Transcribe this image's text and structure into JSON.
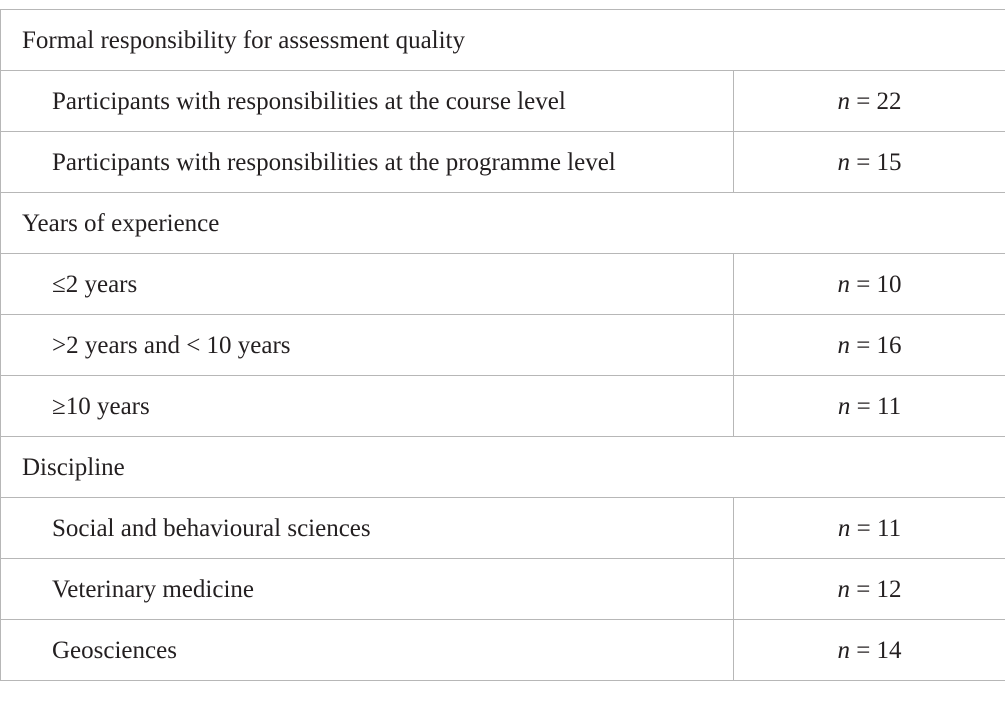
{
  "sections": [
    {
      "title": "Formal responsibility for assessment quality",
      "rows": [
        {
          "label": "Participants with responsibilities at the course level",
          "n_symbol": "n",
          "value": "= 22"
        },
        {
          "label": "Participants with responsibilities at the programme level",
          "n_symbol": "n",
          "value": "= 15"
        }
      ]
    },
    {
      "title": "Years of experience",
      "rows": [
        {
          "label": "≤2 years",
          "n_symbol": "n",
          "value": "= 10"
        },
        {
          "label": ">2 years and < 10 years",
          "n_symbol": "n",
          "value": "= 16"
        },
        {
          "label": "≥10 years",
          "n_symbol": "n",
          "value": "= 11"
        }
      ]
    },
    {
      "title": "Discipline",
      "rows": [
        {
          "label": "Social and behavioural sciences",
          "n_symbol": "n",
          "value": "= 11"
        },
        {
          "label": "Veterinary medicine",
          "n_symbol": "n",
          "value": "= 12"
        },
        {
          "label": "Geosciences",
          "n_symbol": "n",
          "value": "= 14"
        }
      ]
    }
  ]
}
